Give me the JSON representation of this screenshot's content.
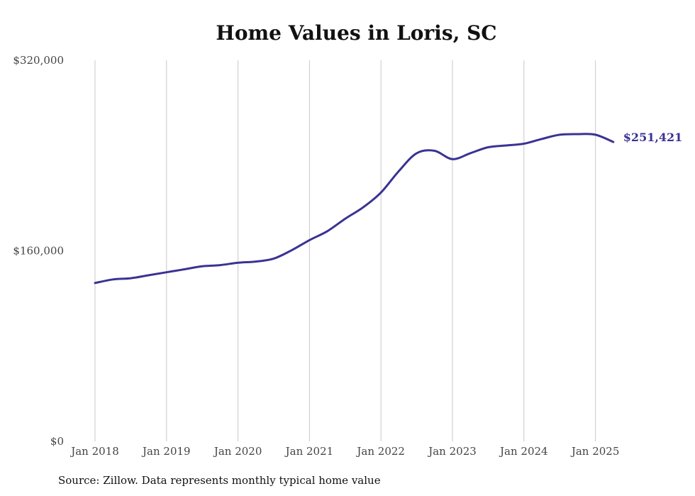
{
  "chart_data": {
    "type": "line",
    "title": "Home Values in Loris, SC",
    "source": "Source: Zillow. Data represents monthly typical home value",
    "ylim": [
      0,
      320000
    ],
    "yticks": [
      {
        "value": 0,
        "label": "$0"
      },
      {
        "value": 160000,
        "label": "$160,000"
      },
      {
        "value": 320000,
        "label": "$320,000"
      }
    ],
    "xticks": [
      "Jan 2018",
      "Jan 2019",
      "Jan 2020",
      "Jan 2021",
      "Jan 2022",
      "Jan 2023",
      "Jan 2024",
      "Jan 2025"
    ],
    "grid": "vertical",
    "line_color": "#3a3393",
    "end_label": "$251,421",
    "series": [
      {
        "points": [
          [
            "2018-01",
            133000
          ],
          [
            "2018-04",
            136000
          ],
          [
            "2018-07",
            137000
          ],
          [
            "2018-10",
            139500
          ],
          [
            "2019-01",
            142000
          ],
          [
            "2019-04",
            144500
          ],
          [
            "2019-07",
            147000
          ],
          [
            "2019-10",
            148000
          ],
          [
            "2020-01",
            150000
          ],
          [
            "2020-04",
            151000
          ],
          [
            "2020-07",
            153500
          ],
          [
            "2020-10",
            160500
          ],
          [
            "2021-01",
            169000
          ],
          [
            "2021-04",
            176500
          ],
          [
            "2021-07",
            187000
          ],
          [
            "2021-10",
            196500
          ],
          [
            "2022-01",
            209000
          ],
          [
            "2022-04",
            227000
          ],
          [
            "2022-07",
            242000
          ],
          [
            "2022-10",
            244000
          ],
          [
            "2023-01",
            237000
          ],
          [
            "2023-04",
            242000
          ],
          [
            "2023-07",
            247000
          ],
          [
            "2023-10",
            248500
          ],
          [
            "2024-01",
            250000
          ],
          [
            "2024-04",
            254000
          ],
          [
            "2024-07",
            257500
          ],
          [
            "2024-10",
            258000
          ],
          [
            "2025-01",
            257500
          ],
          [
            "2025-04",
            251421
          ]
        ]
      }
    ]
  }
}
